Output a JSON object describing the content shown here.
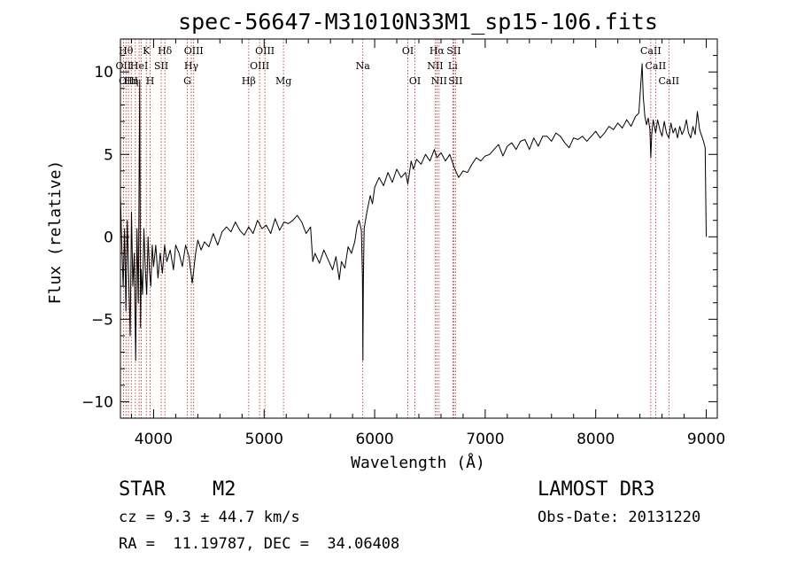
{
  "chart_data": {
    "type": "line",
    "title": "spec-56647-M31010N33M1_sp15-106.fits",
    "xlabel": "Wavelength (Å)",
    "ylabel": "Flux (relative)",
    "xlim": [
      3700,
      9100
    ],
    "ylim": [
      -11,
      12
    ],
    "xticks": [
      4000,
      5000,
      6000,
      7000,
      8000,
      9000
    ],
    "yticks": [
      -10,
      -5,
      0,
      5,
      10
    ],
    "grid": false,
    "series": [
      {
        "points": [
          [
            3700,
            2.5
          ],
          [
            3712,
            -0.5
          ],
          [
            3725,
            -3.0
          ],
          [
            3738,
            0.5
          ],
          [
            3750,
            -4.5
          ],
          [
            3762,
            1.0
          ],
          [
            3775,
            -2.5
          ],
          [
            3788,
            -6.0
          ],
          [
            3800,
            1.5
          ],
          [
            3812,
            -3.0
          ],
          [
            3825,
            -1.0
          ],
          [
            3838,
            -7.5
          ],
          [
            3850,
            0.5
          ],
          [
            3862,
            -4.0
          ],
          [
            3875,
            9.5
          ],
          [
            3882,
            -5.5
          ],
          [
            3888,
            -2.0
          ],
          [
            3900,
            -3.5
          ],
          [
            3912,
            0.5
          ],
          [
            3925,
            -2.0
          ],
          [
            3938,
            -3.5
          ],
          [
            3950,
            0.0
          ],
          [
            3962,
            -2.0
          ],
          [
            3975,
            -3.0
          ],
          [
            3988,
            -0.5
          ],
          [
            4000,
            -1.8
          ],
          [
            4020,
            -0.5
          ],
          [
            4040,
            -2.5
          ],
          [
            4060,
            -1.0
          ],
          [
            4080,
            -2.2
          ],
          [
            4100,
            -0.5
          ],
          [
            4120,
            -1.5
          ],
          [
            4150,
            -0.8
          ],
          [
            4180,
            -2.0
          ],
          [
            4200,
            -0.5
          ],
          [
            4230,
            -1.0
          ],
          [
            4260,
            -1.8
          ],
          [
            4290,
            -0.5
          ],
          [
            4320,
            -1.2
          ],
          [
            4350,
            -2.8
          ],
          [
            4380,
            -1.0
          ],
          [
            4400,
            -0.2
          ],
          [
            4430,
            -0.8
          ],
          [
            4460,
            -0.3
          ],
          [
            4500,
            -0.6
          ],
          [
            4540,
            0.2
          ],
          [
            4580,
            -0.5
          ],
          [
            4620,
            0.3
          ],
          [
            4660,
            0.6
          ],
          [
            4700,
            0.3
          ],
          [
            4740,
            0.9
          ],
          [
            4780,
            0.4
          ],
          [
            4820,
            0.1
          ],
          [
            4860,
            0.6
          ],
          [
            4900,
            0.2
          ],
          [
            4940,
            1.0
          ],
          [
            4980,
            0.5
          ],
          [
            5020,
            0.7
          ],
          [
            5060,
            0.2
          ],
          [
            5100,
            1.1
          ],
          [
            5140,
            0.4
          ],
          [
            5180,
            0.9
          ],
          [
            5220,
            0.8
          ],
          [
            5260,
            1.0
          ],
          [
            5300,
            1.3
          ],
          [
            5340,
            0.9
          ],
          [
            5380,
            0.2
          ],
          [
            5420,
            0.6
          ],
          [
            5440,
            -1.5
          ],
          [
            5460,
            -1.0
          ],
          [
            5500,
            -1.6
          ],
          [
            5540,
            -0.8
          ],
          [
            5580,
            -1.4
          ],
          [
            5620,
            -2.0
          ],
          [
            5650,
            -1.2
          ],
          [
            5680,
            -2.6
          ],
          [
            5700,
            -1.5
          ],
          [
            5730,
            -1.9
          ],
          [
            5760,
            -0.6
          ],
          [
            5790,
            -1.0
          ],
          [
            5820,
            -0.3
          ],
          [
            5840,
            0.6
          ],
          [
            5860,
            1.0
          ],
          [
            5880,
            0.4
          ],
          [
            5890,
            -2.5
          ],
          [
            5894,
            -7.5
          ],
          [
            5898,
            -2.8
          ],
          [
            5905,
            0.5
          ],
          [
            5930,
            1.5
          ],
          [
            5960,
            2.5
          ],
          [
            5980,
            2.0
          ],
          [
            6000,
            3.0
          ],
          [
            6040,
            3.6
          ],
          [
            6080,
            3.1
          ],
          [
            6120,
            3.9
          ],
          [
            6160,
            3.3
          ],
          [
            6200,
            4.1
          ],
          [
            6240,
            3.6
          ],
          [
            6280,
            3.9
          ],
          [
            6300,
            3.2
          ],
          [
            6330,
            4.6
          ],
          [
            6350,
            4.1
          ],
          [
            6380,
            4.7
          ],
          [
            6420,
            4.4
          ],
          [
            6460,
            5.0
          ],
          [
            6500,
            4.6
          ],
          [
            6540,
            5.3
          ],
          [
            6563,
            4.8
          ],
          [
            6600,
            5.1
          ],
          [
            6640,
            4.6
          ],
          [
            6680,
            5.0
          ],
          [
            6720,
            4.2
          ],
          [
            6760,
            3.6
          ],
          [
            6800,
            4.0
          ],
          [
            6840,
            3.9
          ],
          [
            6880,
            4.4
          ],
          [
            6920,
            4.8
          ],
          [
            6960,
            4.6
          ],
          [
            7000,
            4.9
          ],
          [
            7040,
            5.0
          ],
          [
            7080,
            5.3
          ],
          [
            7120,
            5.6
          ],
          [
            7160,
            4.9
          ],
          [
            7200,
            5.5
          ],
          [
            7240,
            5.7
          ],
          [
            7280,
            5.3
          ],
          [
            7320,
            5.8
          ],
          [
            7360,
            5.9
          ],
          [
            7400,
            5.3
          ],
          [
            7440,
            6.0
          ],
          [
            7480,
            5.5
          ],
          [
            7520,
            6.1
          ],
          [
            7560,
            6.1
          ],
          [
            7600,
            5.8
          ],
          [
            7640,
            6.3
          ],
          [
            7680,
            6.1
          ],
          [
            7720,
            5.7
          ],
          [
            7760,
            5.4
          ],
          [
            7800,
            6.0
          ],
          [
            7840,
            5.9
          ],
          [
            7880,
            6.1
          ],
          [
            7920,
            5.8
          ],
          [
            7960,
            6.1
          ],
          [
            8000,
            6.4
          ],
          [
            8040,
            6.0
          ],
          [
            8080,
            6.3
          ],
          [
            8120,
            6.7
          ],
          [
            8160,
            6.5
          ],
          [
            8200,
            6.9
          ],
          [
            8240,
            6.6
          ],
          [
            8280,
            7.1
          ],
          [
            8320,
            6.7
          ],
          [
            8360,
            7.3
          ],
          [
            8390,
            7.5
          ],
          [
            8410,
            9.5
          ],
          [
            8420,
            10.5
          ],
          [
            8430,
            8.5
          ],
          [
            8445,
            7.3
          ],
          [
            8460,
            6.8
          ],
          [
            8475,
            7.2
          ],
          [
            8490,
            6.5
          ],
          [
            8498,
            4.8
          ],
          [
            8506,
            6.2
          ],
          [
            8520,
            7.1
          ],
          [
            8542,
            6.3
          ],
          [
            8560,
            7.1
          ],
          [
            8580,
            6.5
          ],
          [
            8600,
            6.1
          ],
          [
            8620,
            7.0
          ],
          [
            8640,
            6.3
          ],
          [
            8662,
            6.0
          ],
          [
            8680,
            6.9
          ],
          [
            8700,
            6.3
          ],
          [
            8720,
            6.6
          ],
          [
            8740,
            6.0
          ],
          [
            8760,
            6.7
          ],
          [
            8780,
            6.2
          ],
          [
            8800,
            6.5
          ],
          [
            8820,
            7.1
          ],
          [
            8840,
            6.3
          ],
          [
            8860,
            6.0
          ],
          [
            8880,
            6.7
          ],
          [
            8900,
            6.2
          ],
          [
            8920,
            7.6
          ],
          [
            8940,
            6.5
          ],
          [
            8960,
            6.1
          ],
          [
            8975,
            5.8
          ],
          [
            8990,
            5.4
          ],
          [
            9000,
            0.0
          ]
        ]
      }
    ],
    "lines": [
      {
        "x": 3727,
        "label": "OII",
        "row": 1
      },
      {
        "x": 3750,
        "label": "Hθ",
        "row": 0
      },
      {
        "x": 3772,
        "label": "OIII",
        "row": 2
      },
      {
        "x": 3798,
        "label": "Hη",
        "row": 2
      },
      {
        "x": 3835,
        "label": "",
        "row": -1
      },
      {
        "x": 3869,
        "label": "HeI",
        "row": 1
      },
      {
        "x": 3889,
        "label": "",
        "row": -1
      },
      {
        "x": 3934,
        "label": "K",
        "row": 0
      },
      {
        "x": 3969,
        "label": "H",
        "row": 2
      },
      {
        "x": 4069,
        "label": "SII",
        "row": 1
      },
      {
        "x": 4102,
        "label": "Hδ",
        "row": 0
      },
      {
        "x": 4305,
        "label": "G",
        "row": 2
      },
      {
        "x": 4341,
        "label": "Hγ",
        "row": 1
      },
      {
        "x": 4363,
        "label": "OIII",
        "row": 0
      },
      {
        "x": 4861,
        "label": "Hβ",
        "row": 2
      },
      {
        "x": 4959,
        "label": "OIII",
        "row": 1
      },
      {
        "x": 5007,
        "label": "OIII",
        "row": 0
      },
      {
        "x": 5175,
        "label": "Mg",
        "row": 2
      },
      {
        "x": 5893,
        "label": "Na",
        "row": 1
      },
      {
        "x": 6300,
        "label": "OI",
        "row": 0
      },
      {
        "x": 6364,
        "label": "OI",
        "row": 2
      },
      {
        "x": 6548,
        "label": "NII",
        "row": 1
      },
      {
        "x": 6563,
        "label": "Hα",
        "row": 0
      },
      {
        "x": 6583,
        "label": "NII",
        "row": 2
      },
      {
        "x": 6707,
        "label": "Li",
        "row": 1
      },
      {
        "x": 6716,
        "label": "SII",
        "row": 0
      },
      {
        "x": 6731,
        "label": "SII",
        "row": 2
      },
      {
        "x": 8498,
        "label": "CaII",
        "row": 0
      },
      {
        "x": 8542,
        "label": "CaII",
        "row": 1
      },
      {
        "x": 8662,
        "label": "CaII",
        "row": 2
      }
    ]
  },
  "info": {
    "class_label": "STAR",
    "subclass": "M2",
    "survey": "LAMOST DR3",
    "cz": "cz = 9.3 ± 44.7 km/s",
    "obs_date": "Obs-Date: 20131220",
    "coords": "RA =  11.19787, DEC =  34.06408"
  }
}
